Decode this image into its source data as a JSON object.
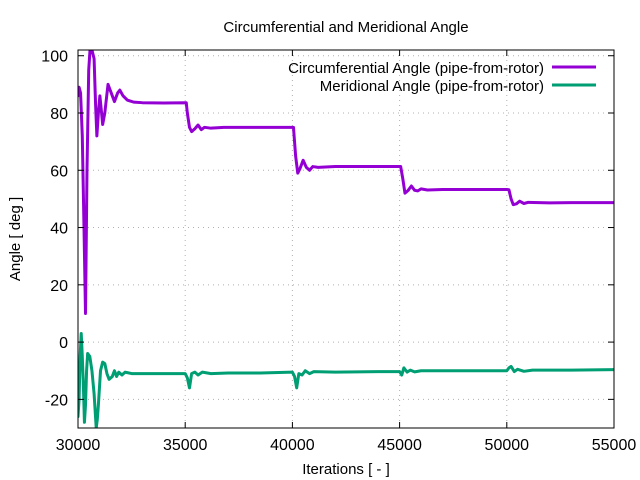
{
  "chart_data": {
    "type": "line",
    "title": "Circumferential and Meridional Angle",
    "xlabel": "Iterations [ - ]",
    "ylabel": "Angle [ deg ]",
    "xlim": [
      30000,
      55000
    ],
    "ylim": [
      -30,
      102
    ],
    "xticks": [
      30000,
      35000,
      40000,
      45000,
      50000,
      55000
    ],
    "yticks": [
      -20,
      0,
      20,
      40,
      60,
      80,
      100
    ],
    "grid": true,
    "legend_position": "top-right",
    "series": [
      {
        "name": "Circumferential Angle (pipe-from-rotor)",
        "color": "#9400d3",
        "points": [
          [
            30000,
            86
          ],
          [
            30050,
            89
          ],
          [
            30120,
            87
          ],
          [
            30200,
            72
          ],
          [
            30280,
            40
          ],
          [
            30350,
            10
          ],
          [
            30420,
            60
          ],
          [
            30500,
            95
          ],
          [
            30560,
            102
          ],
          [
            30650,
            102
          ],
          [
            30750,
            99
          ],
          [
            30820,
            83
          ],
          [
            30880,
            72
          ],
          [
            30950,
            80
          ],
          [
            31020,
            86
          ],
          [
            31100,
            80
          ],
          [
            31150,
            76
          ],
          [
            31250,
            80
          ],
          [
            31400,
            90
          ],
          [
            31550,
            87
          ],
          [
            31700,
            84
          ],
          [
            31850,
            87
          ],
          [
            31950,
            88
          ],
          [
            32100,
            86
          ],
          [
            32300,
            84.5
          ],
          [
            32600,
            83.8
          ],
          [
            33000,
            83.6
          ],
          [
            34000,
            83.5
          ],
          [
            35050,
            83.6
          ],
          [
            35100,
            80
          ],
          [
            35200,
            75
          ],
          [
            35300,
            73.5
          ],
          [
            35450,
            74.5
          ],
          [
            35600,
            75.8
          ],
          [
            35750,
            74.2
          ],
          [
            35900,
            75
          ],
          [
            36200,
            74.7
          ],
          [
            36800,
            75
          ],
          [
            38000,
            75
          ],
          [
            40050,
            75
          ],
          [
            40150,
            65
          ],
          [
            40250,
            59
          ],
          [
            40350,
            60.5
          ],
          [
            40500,
            63.5
          ],
          [
            40650,
            61
          ],
          [
            40800,
            60
          ],
          [
            40950,
            61.3
          ],
          [
            41200,
            61
          ],
          [
            42000,
            61.3
          ],
          [
            44000,
            61.3
          ],
          [
            45050,
            61.3
          ],
          [
            45150,
            57
          ],
          [
            45250,
            52
          ],
          [
            45400,
            53
          ],
          [
            45550,
            54.5
          ],
          [
            45700,
            53
          ],
          [
            45850,
            52.8
          ],
          [
            46000,
            53.5
          ],
          [
            46300,
            53.1
          ],
          [
            47000,
            53.3
          ],
          [
            50000,
            53.3
          ],
          [
            50100,
            53.2
          ],
          [
            50200,
            50
          ],
          [
            50300,
            48
          ],
          [
            50450,
            48.3
          ],
          [
            50600,
            49.2
          ],
          [
            50800,
            48.4
          ],
          [
            51000,
            48.8
          ],
          [
            52000,
            48.6
          ],
          [
            53000,
            48.7
          ],
          [
            55000,
            48.7
          ]
        ]
      },
      {
        "name": "Meridional Angle (pipe-from-rotor)",
        "color": "#009e73",
        "points": [
          [
            30000,
            -26
          ],
          [
            30050,
            -20
          ],
          [
            30100,
            -5
          ],
          [
            30150,
            3
          ],
          [
            30200,
            -5
          ],
          [
            30250,
            -15
          ],
          [
            30300,
            -28
          ],
          [
            30350,
            -22
          ],
          [
            30400,
            -10
          ],
          [
            30450,
            -4
          ],
          [
            30550,
            -5
          ],
          [
            30650,
            -10
          ],
          [
            30750,
            -18
          ],
          [
            30850,
            -30
          ],
          [
            30900,
            -27
          ],
          [
            30950,
            -22
          ],
          [
            31050,
            -10
          ],
          [
            31150,
            -7
          ],
          [
            31250,
            -7.5
          ],
          [
            31350,
            -11
          ],
          [
            31450,
            -13
          ],
          [
            31600,
            -12
          ],
          [
            31700,
            -10
          ],
          [
            31800,
            -12
          ],
          [
            31900,
            -10.5
          ],
          [
            32050,
            -11.5
          ],
          [
            32200,
            -10.5
          ],
          [
            32500,
            -11
          ],
          [
            33500,
            -11
          ],
          [
            35000,
            -11
          ],
          [
            35100,
            -12.5
          ],
          [
            35200,
            -16
          ],
          [
            35300,
            -11
          ],
          [
            35450,
            -10.5
          ],
          [
            35600,
            -11.5
          ],
          [
            35800,
            -10.5
          ],
          [
            36200,
            -11
          ],
          [
            37000,
            -10.8
          ],
          [
            38500,
            -10.8
          ],
          [
            40000,
            -10.5
          ],
          [
            40100,
            -12
          ],
          [
            40200,
            -16
          ],
          [
            40300,
            -11
          ],
          [
            40450,
            -11.5
          ],
          [
            40600,
            -10
          ],
          [
            40800,
            -11
          ],
          [
            41000,
            -10.3
          ],
          [
            42000,
            -10.5
          ],
          [
            44000,
            -10.3
          ],
          [
            45000,
            -10.3
          ],
          [
            45100,
            -11.5
          ],
          [
            45200,
            -9
          ],
          [
            45350,
            -10.5
          ],
          [
            45500,
            -9.8
          ],
          [
            45700,
            -10.4
          ],
          [
            46000,
            -10
          ],
          [
            48000,
            -10
          ],
          [
            50000,
            -10
          ],
          [
            50100,
            -9
          ],
          [
            50200,
            -8.5
          ],
          [
            50350,
            -10.3
          ],
          [
            50500,
            -9.5
          ],
          [
            50800,
            -10.2
          ],
          [
            51200,
            -9.8
          ],
          [
            53000,
            -9.8
          ],
          [
            55000,
            -9.6
          ]
        ]
      }
    ]
  }
}
